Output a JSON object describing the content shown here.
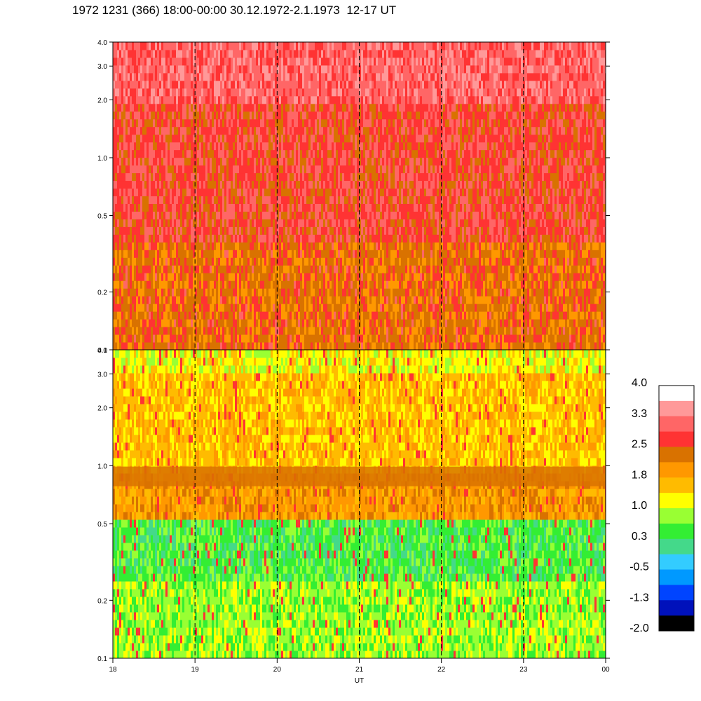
{
  "title": "1972 1231 (366) 18:00-00:00 30.12.1972-2.1.1973  12-17 UT",
  "chart_data": [
    {
      "type": "heatmap",
      "panel": "upper",
      "y_ticks": [
        "4.0",
        "3.0",
        "2.0",
        "1.0",
        "0.5",
        "0.2",
        "0.1"
      ],
      "y_tick_values": [
        4.0,
        3.0,
        2.0,
        1.0,
        0.5,
        0.2,
        0.1
      ],
      "ylim": [
        0.1,
        4.0
      ],
      "y_scale": "log",
      "dominant_levels_low_to_high_freq": [
        "-0.5",
        "0.3",
        "0.3",
        "1.0"
      ]
    },
    {
      "type": "heatmap",
      "panel": "lower",
      "y_ticks": [
        "4.0",
        "3.0",
        "2.0",
        "1.0",
        "0.5",
        "0.2",
        "0.1"
      ],
      "y_tick_values": [
        4.0,
        3.0,
        2.0,
        1.0,
        0.5,
        0.2,
        0.1
      ],
      "ylim": [
        0.1,
        4.0
      ],
      "y_scale": "log",
      "dominant_levels_low_to_high_freq": [
        "1.8",
        "1.0",
        "1.8",
        "2.5",
        "1.8",
        "1.0"
      ],
      "band_center_freq": 0.88
    }
  ],
  "x_axis": {
    "label": "UT",
    "ticks": [
      "18",
      "19",
      "20",
      "21",
      "22",
      "23",
      "00"
    ],
    "tick_values": [
      18,
      19,
      20,
      21,
      22,
      23,
      24
    ],
    "xlim": [
      18,
      24
    ],
    "grid": "dashed vertical lines at each hour"
  },
  "colorbar": {
    "labels": [
      "4.0",
      "3.3",
      "2.5",
      "1.8",
      "1.0",
      "0.3",
      "-0.5",
      "-1.3",
      "-2.0"
    ],
    "colors_top_to_bottom": [
      "#ffffff",
      "#ff9999",
      "#ff6666",
      "#ff3333",
      "#d97200",
      "#ff9800",
      "#ffbb00",
      "#ffff00",
      "#99ff33",
      "#33ee33",
      "#44d98a",
      "#33ccff",
      "#0099ff",
      "#0044ff",
      "#0011bb",
      "#000000"
    ]
  }
}
